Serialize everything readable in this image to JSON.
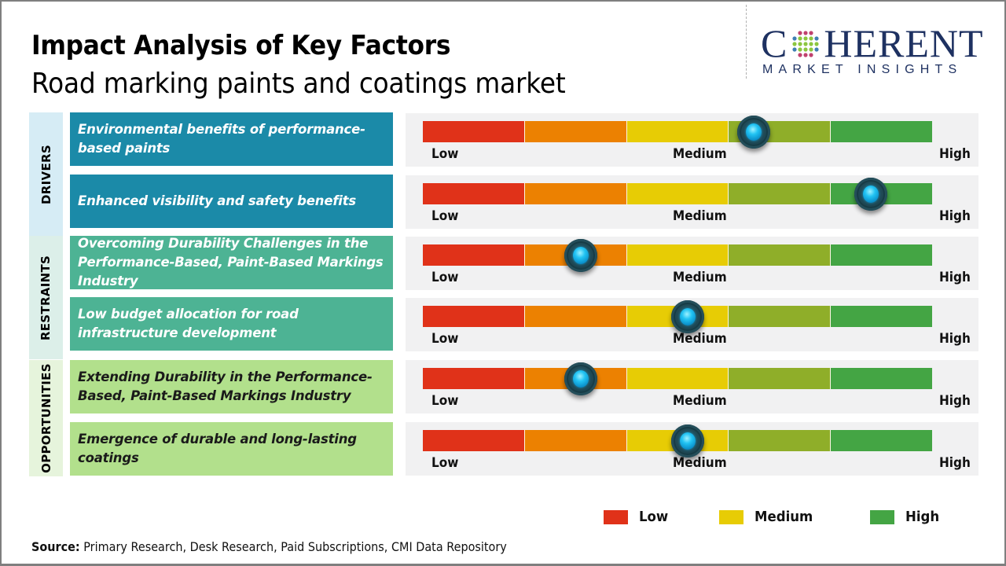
{
  "header": {
    "title": "Impact Analysis of Key Factors",
    "subtitle": "Road marking paints and coatings market"
  },
  "logo": {
    "main_left": "C",
    "main_right": "HERENT",
    "sub": "MARKET INSIGHTS",
    "icon": "globe-dots-icon"
  },
  "scale": {
    "low_label": "Low",
    "medium_label": "Medium",
    "high_label": "High",
    "segment_colors": [
      "#e03219",
      "#ec8101",
      "#e7cc05",
      "#8fae29",
      "#44a544"
    ]
  },
  "categories": [
    {
      "label": "DRIVERS",
      "label_bg": "#d6ecf5",
      "factor_bg": "#1b8aa8",
      "factor_text_color": "#ffffff",
      "factors": [
        {
          "text": "Environmental benefits of performance-based paints",
          "impact": 0.65
        },
        {
          "text": "Enhanced visibility and safety benefits",
          "impact": 0.88
        }
      ]
    },
    {
      "label": "RESTRAINTS",
      "label_bg": "#dcefe9",
      "factor_bg": "#4db394",
      "factor_text_color": "#ffffff",
      "factors": [
        {
          "text": "Overcoming Durability Challenges in the Performance-Based, Paint-Based Markings Industry",
          "impact": 0.31
        },
        {
          "text": "Low budget allocation for road infrastructure development",
          "impact": 0.52
        }
      ]
    },
    {
      "label": "OPPORTUNITIES",
      "label_bg": "#e6f4dc",
      "factor_bg": "#b2e08c",
      "factor_text_color": "#1a1a1a",
      "factors": [
        {
          "text": "Extending Durability in the Performance-Based, Paint-Based Markings Industry",
          "impact": 0.31
        },
        {
          "text": "Emergence of durable and long-lasting coatings",
          "impact": 0.52
        }
      ]
    }
  ],
  "legend": [
    {
      "label": "Low",
      "color": "#e03219"
    },
    {
      "label": "Medium",
      "color": "#e7cc05"
    },
    {
      "label": "High",
      "color": "#44a544"
    }
  ],
  "footer": {
    "source_label": "Source:",
    "source_text": " Primary Research, Desk Research, Paid Subscriptions, CMI Data Repository"
  }
}
